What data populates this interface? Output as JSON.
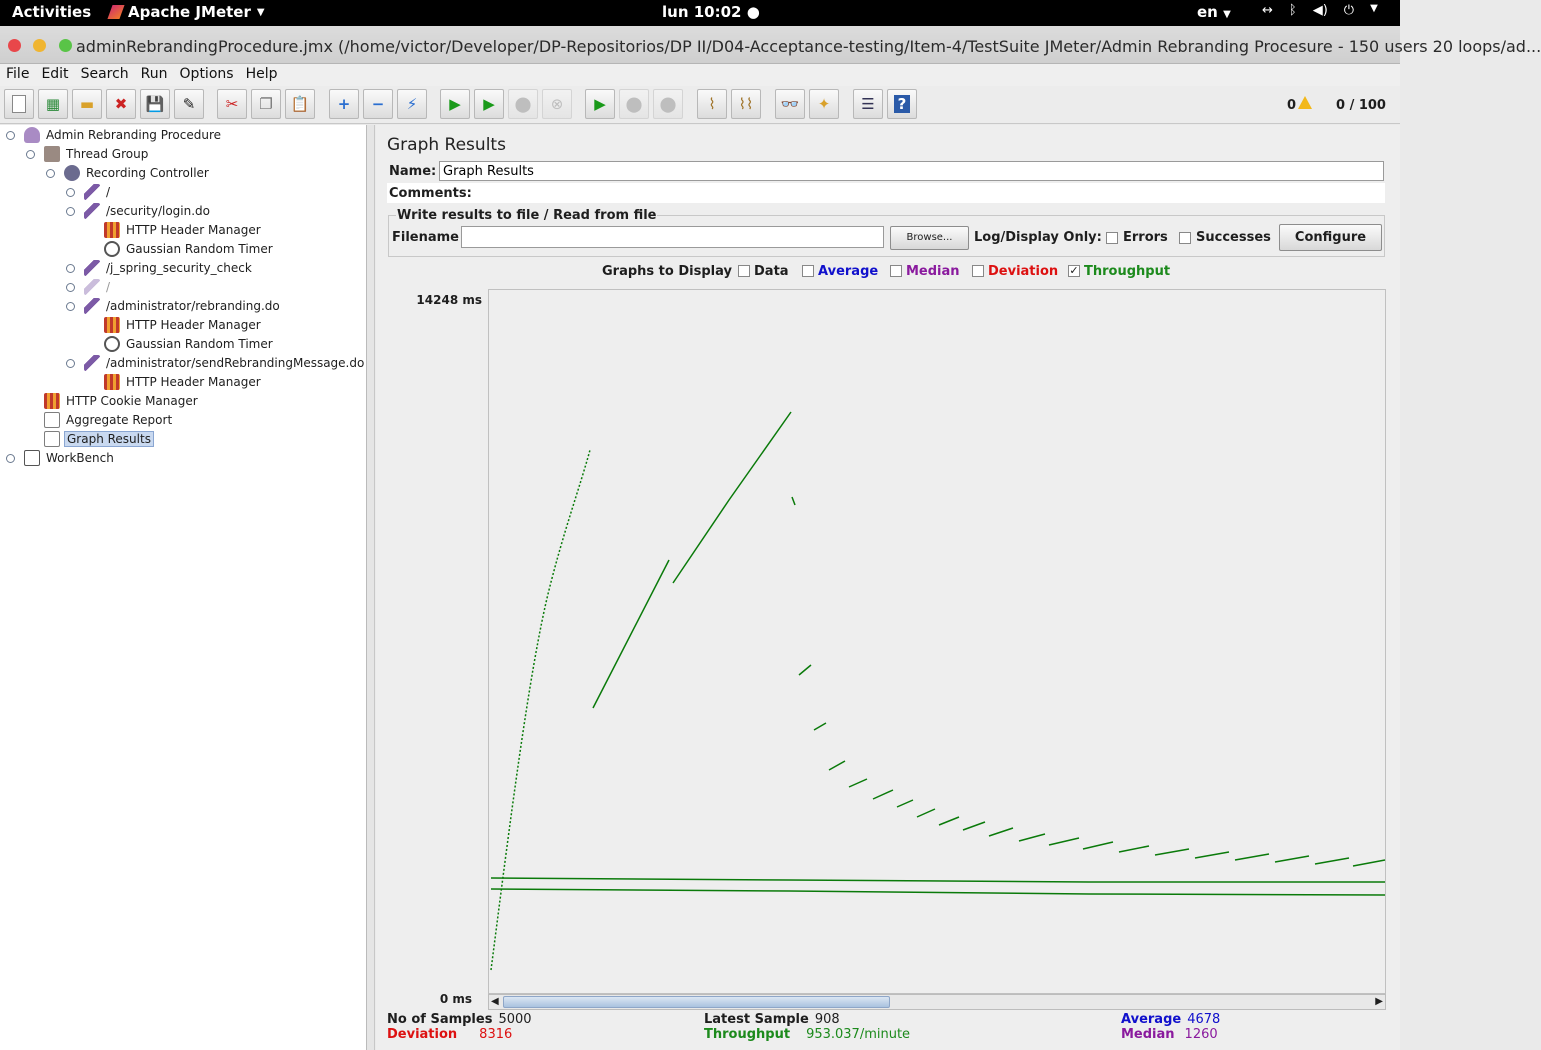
{
  "topbar": {
    "activities": "Activities",
    "app_name": "Apache JMeter",
    "clock": "lun 10:02",
    "language": "en"
  },
  "window": {
    "title": "adminRebrandingProcedure.jmx (/home/victor/Developer/DP-Repositorios/DP II/D04-Acceptance-testing/Item-4/TestSuite JMeter/Admin Rebranding Procesure - 150 users 20 loops/ad..."
  },
  "menu": [
    "File",
    "Edit",
    "Search",
    "Run",
    "Options",
    "Help"
  ],
  "toolbar": {
    "warning_count": "0",
    "thread_count": "0 / 100"
  },
  "tree": [
    {
      "label": "Admin Rebranding Procedure",
      "icon": "plan-icon"
    },
    {
      "label": "Thread Group",
      "icon": "thread-group-icon"
    },
    {
      "label": "Recording Controller",
      "icon": "controller-icon"
    },
    {
      "label": "/",
      "icon": "sampler-icon"
    },
    {
      "label": "/security/login.do",
      "icon": "sampler-icon"
    },
    {
      "label": "HTTP Header Manager",
      "icon": "header-manager-icon"
    },
    {
      "label": "Gaussian Random Timer",
      "icon": "timer-icon"
    },
    {
      "label": "/j_spring_security_check",
      "icon": "sampler-icon"
    },
    {
      "label": "/",
      "icon": "sampler-disabled-icon"
    },
    {
      "label": "/administrator/rebranding.do",
      "icon": "sampler-icon"
    },
    {
      "label": "HTTP Header Manager",
      "icon": "header-manager-icon"
    },
    {
      "label": "Gaussian Random Timer",
      "icon": "timer-icon"
    },
    {
      "label": "/administrator/sendRebrandingMessage.do",
      "icon": "sampler-icon"
    },
    {
      "label": "HTTP Header Manager",
      "icon": "header-manager-icon"
    },
    {
      "label": "HTTP Cookie Manager",
      "icon": "cookie-manager-icon"
    },
    {
      "label": "Aggregate Report",
      "icon": "report-icon"
    },
    {
      "label": "Graph Results",
      "icon": "report-icon"
    },
    {
      "label": "WorkBench",
      "icon": "workbench-icon"
    }
  ],
  "panel": {
    "title": "Graph Results",
    "name_label": "Name:",
    "name_value": "Graph Results",
    "comments_label": "Comments:",
    "file_section_title": "Write results to file / Read from file",
    "filename_label": "Filename",
    "browse_label": "Browse...",
    "log_display_label": "Log/Display Only:",
    "errors_label": "Errors",
    "successes_label": "Successes",
    "configure_label": "Configure",
    "graphs_to_display_label": "Graphs to Display"
  },
  "graph_options": [
    {
      "label": "Data",
      "checked": false,
      "color": "#1e1e1e"
    },
    {
      "label": "Average",
      "checked": false,
      "color": "#1010cc"
    },
    {
      "label": "Median",
      "checked": false,
      "color": "#8a1a9e"
    },
    {
      "label": "Deviation",
      "checked": false,
      "color": "#dd1111"
    },
    {
      "label": "Throughput",
      "checked": true,
      "color": "#1c8a1c"
    }
  ],
  "graph": {
    "y_max_label": "14248 ms",
    "y_min_label": "0 ms",
    "line_color": "#0a7a0a"
  },
  "stats": {
    "samples_label": "No of Samples",
    "samples_value": "5000",
    "latest_label": "Latest Sample",
    "latest_value": "908",
    "average_label": "Average",
    "average_value": "4678",
    "deviation_label": "Deviation",
    "deviation_value": "8316",
    "throughput_label": "Throughput",
    "throughput_value": "953.037/minute",
    "median_label": "Median",
    "median_value": "1260",
    "colors": {
      "average": "#1010cc",
      "deviation": "#dd1111",
      "throughput": "#1c8a1c",
      "median": "#8a1a9e"
    }
  }
}
